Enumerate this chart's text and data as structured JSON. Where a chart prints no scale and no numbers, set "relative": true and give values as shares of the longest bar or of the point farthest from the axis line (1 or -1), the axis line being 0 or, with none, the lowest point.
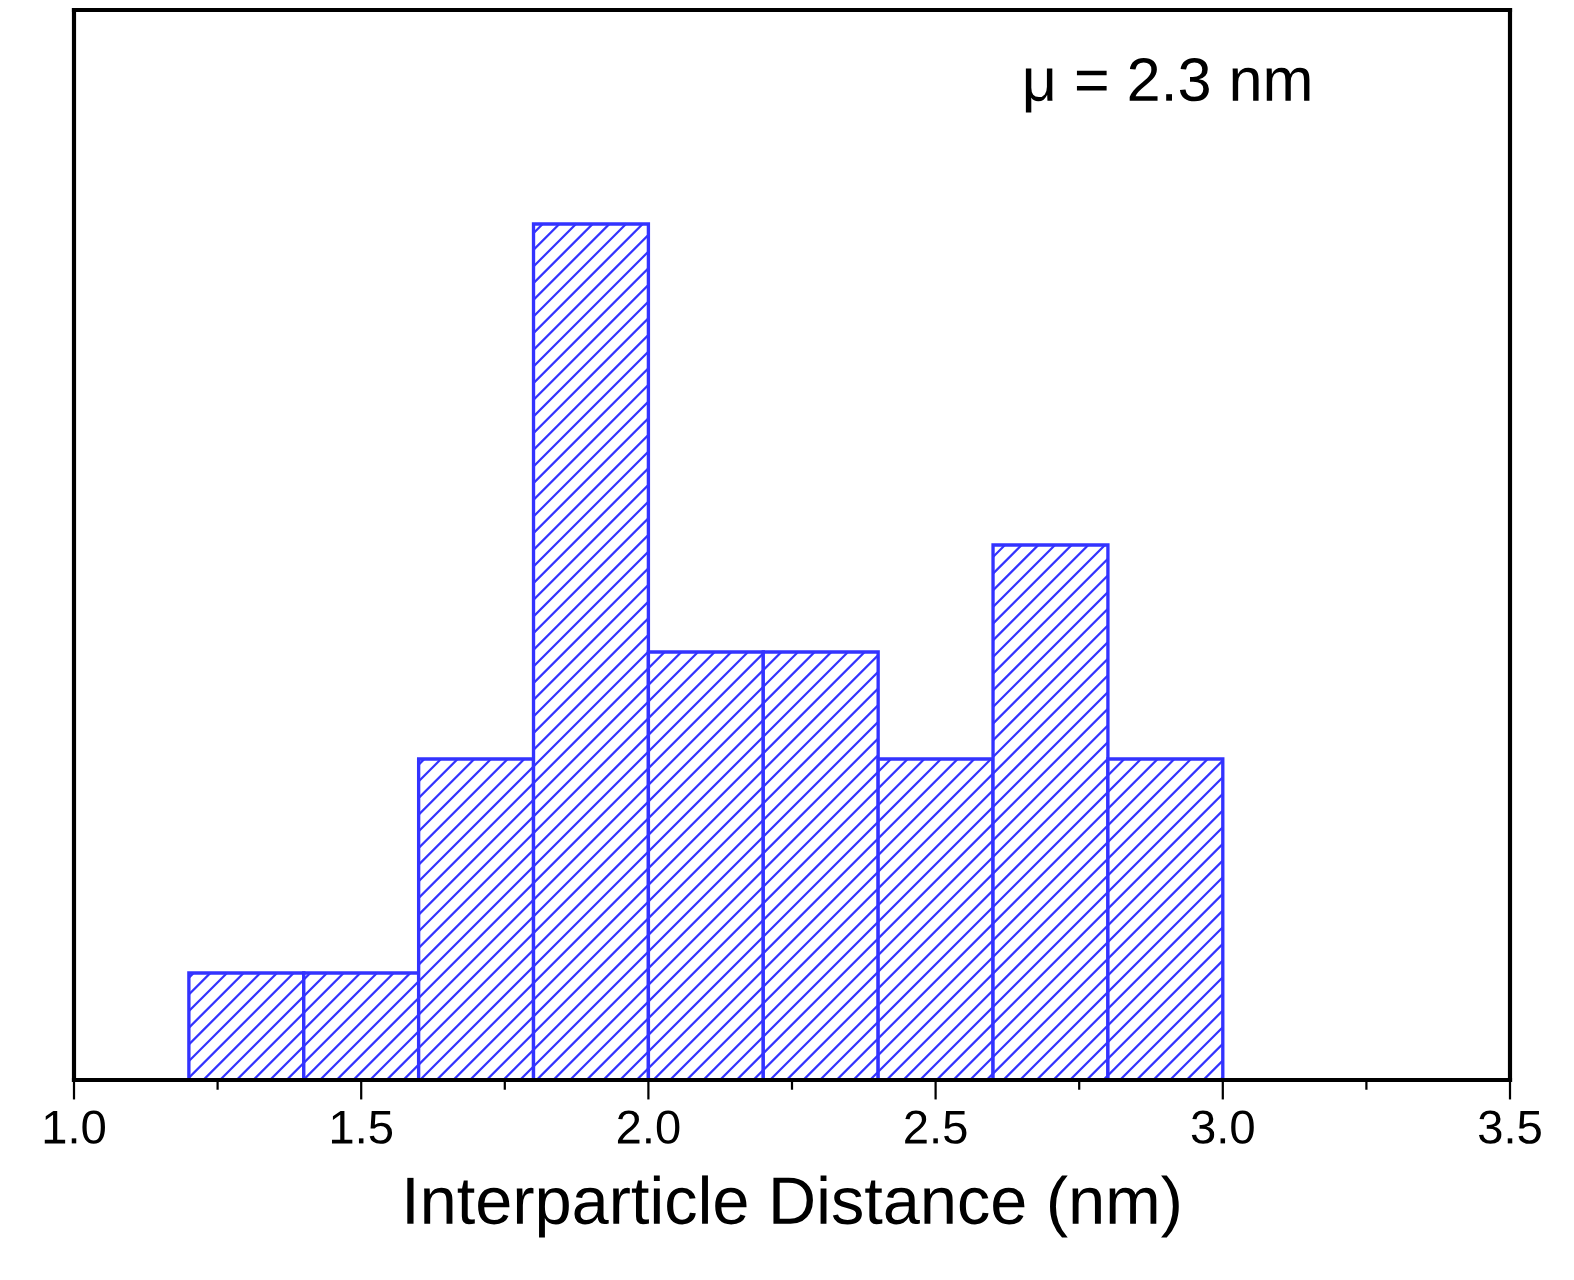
{
  "chart_data": {
    "type": "bar",
    "xlabel": "Interparticle Distance (nm)",
    "annotations": [
      "μ = 2.3 nm"
    ],
    "x": [
      1.3,
      1.5,
      1.7,
      1.9,
      2.1,
      2.3,
      2.5,
      2.7,
      2.9
    ],
    "values": [
      0.125,
      0.125,
      0.375,
      1,
      0.5,
      0.5,
      0.375,
      0.625,
      0.375
    ],
    "relative": true,
    "color": "#3333ff",
    "xlim": [
      1.0,
      3.5
    ],
    "xticks": [
      {
        "value": 1.0,
        "label": "1.0"
      },
      {
        "value": 1.25,
        "label": null
      },
      {
        "value": 1.5,
        "label": "1.5"
      },
      {
        "value": 1.75,
        "label": null
      },
      {
        "value": 2.0,
        "label": "2.0"
      },
      {
        "value": 2.25,
        "label": null
      },
      {
        "value": 2.5,
        "label": "2.5"
      },
      {
        "value": 2.75,
        "label": null
      },
      {
        "value": 3.0,
        "label": "3.0"
      },
      {
        "value": 3.25,
        "label": null
      },
      {
        "value": 3.5,
        "label": "3.5"
      }
    ],
    "grid": false,
    "legend": false
  }
}
